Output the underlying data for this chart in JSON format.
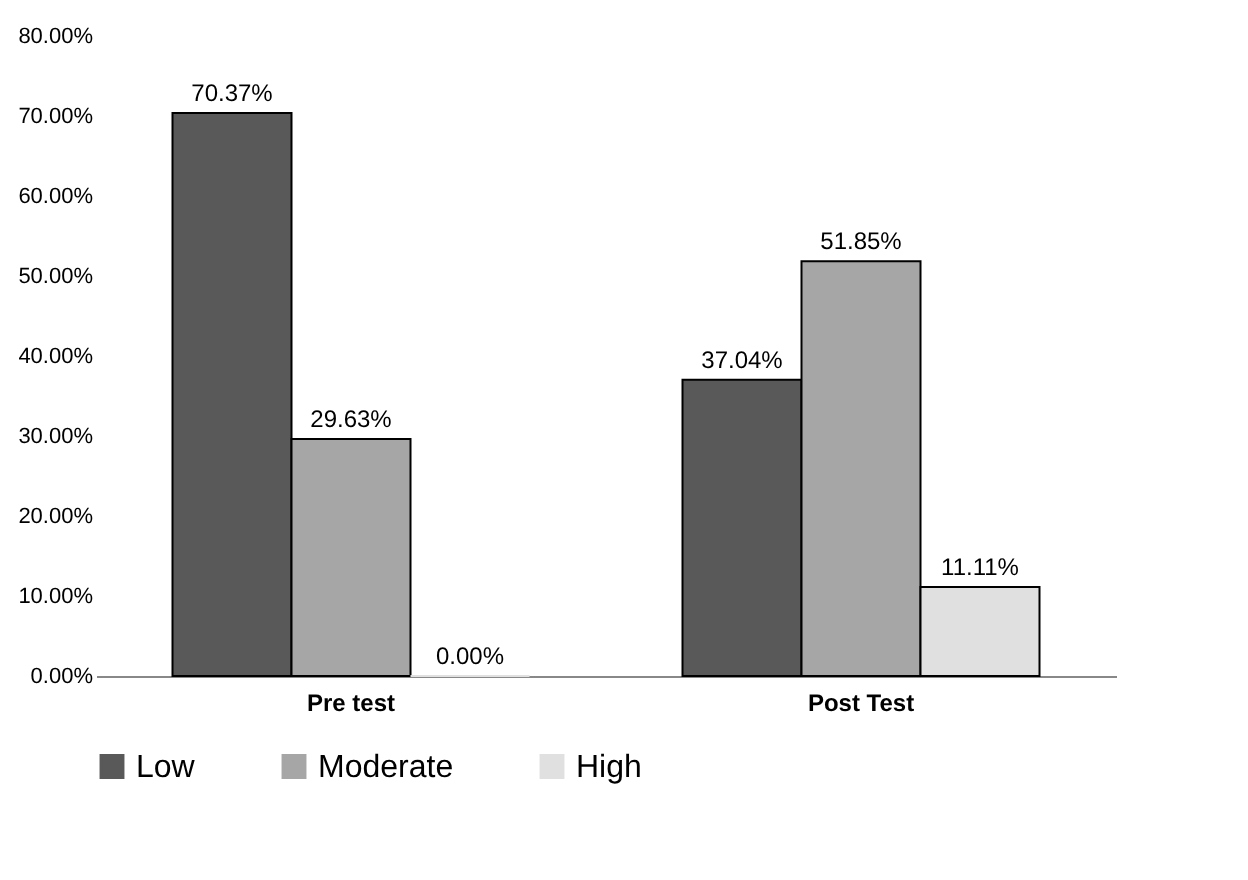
{
  "chart_data": {
    "type": "bar",
    "categories": [
      "Pre test",
      "Post Test"
    ],
    "series": [
      {
        "name": "Low",
        "color": "#595959",
        "values": [
          70.37,
          37.04
        ],
        "value_labels": [
          "70.37%",
          "37.04%"
        ]
      },
      {
        "name": "Moderate",
        "color": "#a6a6a6",
        "values": [
          29.63,
          51.85
        ],
        "value_labels": [
          "29.63%",
          "51.85%"
        ]
      },
      {
        "name": "High",
        "color": "#e0e0e0",
        "values": [
          0,
          11.11
        ],
        "value_labels": [
          "0.00%",
          "11.11%"
        ]
      }
    ],
    "ylim": [
      0,
      80
    ],
    "yticks": [
      {
        "value": 0,
        "label": "0.00%"
      },
      {
        "value": 10,
        "label": "10.00%"
      },
      {
        "value": 20,
        "label": "20.00%"
      },
      {
        "value": 30,
        "label": "30.00%"
      },
      {
        "value": 40,
        "label": "40.00%"
      },
      {
        "value": 50,
        "label": "50.00%"
      },
      {
        "value": 60,
        "label": "60.00%"
      },
      {
        "value": 70,
        "label": "70.00%"
      },
      {
        "value": 80,
        "label": "80.00%"
      }
    ],
    "legend": "bottom"
  }
}
